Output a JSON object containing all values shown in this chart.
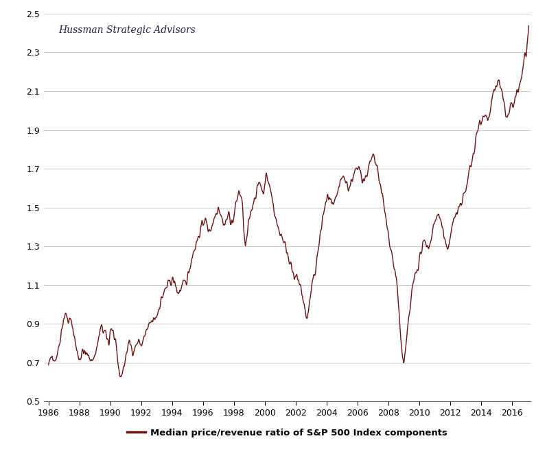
{
  "title_annotation": "Hussman Strategic Advisors",
  "legend_label": "Median price/revenue ratio of S&P 500 Index components",
  "line_color": "#6B1212",
  "line_width": 1.0,
  "background_color": "#ffffff",
  "grid_color": "#c8c8c8",
  "ylim": [
    0.5,
    2.5
  ],
  "yticks": [
    0.5,
    0.7,
    0.9,
    1.1,
    1.3,
    1.5,
    1.7,
    1.9,
    2.1,
    2.3,
    2.5
  ],
  "xlim": [
    1985.7,
    2017.2
  ],
  "xtick_positions": [
    1986,
    1988,
    1990,
    1992,
    1994,
    1996,
    1998,
    2000,
    2002,
    2004,
    2006,
    2008,
    2010,
    2012,
    2014,
    2016
  ],
  "xtick_labels": [
    "1986",
    "1988",
    "1990",
    "1992",
    "1994",
    "1996",
    "1998",
    "2000",
    "2002",
    "2004",
    "2006",
    "2008",
    "2010",
    "2012",
    "2014",
    "2016"
  ],
  "data": [
    [
      1986.0,
      0.68
    ],
    [
      1986.08,
      0.7
    ],
    [
      1986.17,
      0.72
    ],
    [
      1986.25,
      0.75
    ],
    [
      1986.33,
      0.73
    ],
    [
      1986.42,
      0.71
    ],
    [
      1986.5,
      0.73
    ],
    [
      1986.58,
      0.75
    ],
    [
      1986.67,
      0.78
    ],
    [
      1986.75,
      0.82
    ],
    [
      1986.83,
      0.86
    ],
    [
      1986.92,
      0.9
    ],
    [
      1987.0,
      0.93
    ],
    [
      1987.08,
      0.95
    ],
    [
      1987.17,
      0.94
    ],
    [
      1987.25,
      0.92
    ],
    [
      1987.33,
      0.91
    ],
    [
      1987.42,
      0.92
    ],
    [
      1987.5,
      0.9
    ],
    [
      1987.58,
      0.88
    ],
    [
      1987.67,
      0.84
    ],
    [
      1987.75,
      0.8
    ],
    [
      1987.83,
      0.76
    ],
    [
      1987.92,
      0.74
    ],
    [
      1988.0,
      0.72
    ],
    [
      1988.08,
      0.73
    ],
    [
      1988.17,
      0.75
    ],
    [
      1988.25,
      0.76
    ],
    [
      1988.33,
      0.75
    ],
    [
      1988.42,
      0.74
    ],
    [
      1988.5,
      0.74
    ],
    [
      1988.58,
      0.73
    ],
    [
      1988.67,
      0.73
    ],
    [
      1988.75,
      0.72
    ],
    [
      1988.83,
      0.71
    ],
    [
      1988.92,
      0.72
    ],
    [
      1989.0,
      0.74
    ],
    [
      1989.08,
      0.76
    ],
    [
      1989.17,
      0.79
    ],
    [
      1989.25,
      0.82
    ],
    [
      1989.33,
      0.86
    ],
    [
      1989.42,
      0.88
    ],
    [
      1989.5,
      0.87
    ],
    [
      1989.58,
      0.86
    ],
    [
      1989.67,
      0.85
    ],
    [
      1989.75,
      0.83
    ],
    [
      1989.83,
      0.82
    ],
    [
      1989.92,
      0.8
    ],
    [
      1990.0,
      0.87
    ],
    [
      1990.08,
      0.88
    ],
    [
      1990.17,
      0.86
    ],
    [
      1990.25,
      0.83
    ],
    [
      1990.33,
      0.79
    ],
    [
      1990.42,
      0.75
    ],
    [
      1990.5,
      0.7
    ],
    [
      1990.58,
      0.65
    ],
    [
      1990.67,
      0.63
    ],
    [
      1990.75,
      0.64
    ],
    [
      1990.83,
      0.66
    ],
    [
      1990.92,
      0.69
    ],
    [
      1991.0,
      0.73
    ],
    [
      1991.08,
      0.76
    ],
    [
      1991.17,
      0.79
    ],
    [
      1991.25,
      0.8
    ],
    [
      1991.33,
      0.79
    ],
    [
      1991.42,
      0.77
    ],
    [
      1991.5,
      0.76
    ],
    [
      1991.58,
      0.77
    ],
    [
      1991.67,
      0.79
    ],
    [
      1991.75,
      0.8
    ],
    [
      1991.83,
      0.81
    ],
    [
      1991.92,
      0.8
    ],
    [
      1992.0,
      0.79
    ],
    [
      1992.08,
      0.8
    ],
    [
      1992.17,
      0.82
    ],
    [
      1992.25,
      0.84
    ],
    [
      1992.33,
      0.86
    ],
    [
      1992.42,
      0.87
    ],
    [
      1992.5,
      0.88
    ],
    [
      1992.58,
      0.9
    ],
    [
      1992.67,
      0.91
    ],
    [
      1992.75,
      0.91
    ],
    [
      1992.83,
      0.92
    ],
    [
      1992.92,
      0.93
    ],
    [
      1993.0,
      0.94
    ],
    [
      1993.08,
      0.96
    ],
    [
      1993.17,
      0.99
    ],
    [
      1993.25,
      1.01
    ],
    [
      1993.33,
      1.03
    ],
    [
      1993.42,
      1.05
    ],
    [
      1993.5,
      1.06
    ],
    [
      1993.58,
      1.08
    ],
    [
      1993.67,
      1.09
    ],
    [
      1993.75,
      1.1
    ],
    [
      1993.83,
      1.11
    ],
    [
      1993.92,
      1.12
    ],
    [
      1994.0,
      1.13
    ],
    [
      1994.08,
      1.12
    ],
    [
      1994.17,
      1.11
    ],
    [
      1994.25,
      1.09
    ],
    [
      1994.33,
      1.07
    ],
    [
      1994.42,
      1.06
    ],
    [
      1994.5,
      1.07
    ],
    [
      1994.58,
      1.08
    ],
    [
      1994.67,
      1.09
    ],
    [
      1994.75,
      1.1
    ],
    [
      1994.83,
      1.11
    ],
    [
      1994.92,
      1.12
    ],
    [
      1995.0,
      1.14
    ],
    [
      1995.08,
      1.17
    ],
    [
      1995.17,
      1.2
    ],
    [
      1995.25,
      1.23
    ],
    [
      1995.33,
      1.26
    ],
    [
      1995.42,
      1.28
    ],
    [
      1995.5,
      1.3
    ],
    [
      1995.58,
      1.32
    ],
    [
      1995.67,
      1.34
    ],
    [
      1995.75,
      1.36
    ],
    [
      1995.83,
      1.38
    ],
    [
      1995.92,
      1.4
    ],
    [
      1996.0,
      1.42
    ],
    [
      1996.08,
      1.44
    ],
    [
      1996.17,
      1.43
    ],
    [
      1996.25,
      1.41
    ],
    [
      1996.33,
      1.39
    ],
    [
      1996.42,
      1.38
    ],
    [
      1996.5,
      1.39
    ],
    [
      1996.58,
      1.41
    ],
    [
      1996.67,
      1.43
    ],
    [
      1996.75,
      1.45
    ],
    [
      1996.83,
      1.47
    ],
    [
      1996.92,
      1.49
    ],
    [
      1997.0,
      1.51
    ],
    [
      1997.08,
      1.49
    ],
    [
      1997.17,
      1.46
    ],
    [
      1997.25,
      1.44
    ],
    [
      1997.33,
      1.42
    ],
    [
      1997.42,
      1.41
    ],
    [
      1997.5,
      1.43
    ],
    [
      1997.58,
      1.45
    ],
    [
      1997.67,
      1.46
    ],
    [
      1997.75,
      1.45
    ],
    [
      1997.83,
      1.43
    ],
    [
      1997.92,
      1.42
    ],
    [
      1998.0,
      1.45
    ],
    [
      1998.08,
      1.49
    ],
    [
      1998.17,
      1.53
    ],
    [
      1998.25,
      1.56
    ],
    [
      1998.33,
      1.58
    ],
    [
      1998.42,
      1.57
    ],
    [
      1998.5,
      1.54
    ],
    [
      1998.58,
      1.48
    ],
    [
      1998.67,
      1.35
    ],
    [
      1998.75,
      1.29
    ],
    [
      1998.83,
      1.33
    ],
    [
      1998.92,
      1.39
    ],
    [
      1999.0,
      1.44
    ],
    [
      1999.08,
      1.47
    ],
    [
      1999.17,
      1.5
    ],
    [
      1999.25,
      1.53
    ],
    [
      1999.33,
      1.55
    ],
    [
      1999.42,
      1.57
    ],
    [
      1999.5,
      1.59
    ],
    [
      1999.58,
      1.61
    ],
    [
      1999.67,
      1.63
    ],
    [
      1999.75,
      1.62
    ],
    [
      1999.83,
      1.59
    ],
    [
      1999.92,
      1.57
    ],
    [
      2000.0,
      1.64
    ],
    [
      2000.08,
      1.66
    ],
    [
      2000.17,
      1.65
    ],
    [
      2000.25,
      1.63
    ],
    [
      2000.33,
      1.6
    ],
    [
      2000.42,
      1.57
    ],
    [
      2000.5,
      1.54
    ],
    [
      2000.58,
      1.5
    ],
    [
      2000.67,
      1.46
    ],
    [
      2000.75,
      1.43
    ],
    [
      2000.83,
      1.4
    ],
    [
      2000.92,
      1.38
    ],
    [
      2001.0,
      1.37
    ],
    [
      2001.08,
      1.36
    ],
    [
      2001.17,
      1.34
    ],
    [
      2001.25,
      1.32
    ],
    [
      2001.33,
      1.3
    ],
    [
      2001.42,
      1.28
    ],
    [
      2001.5,
      1.26
    ],
    [
      2001.58,
      1.24
    ],
    [
      2001.67,
      1.21
    ],
    [
      2001.75,
      1.18
    ],
    [
      2001.83,
      1.15
    ],
    [
      2001.92,
      1.12
    ],
    [
      2002.0,
      1.13
    ],
    [
      2002.08,
      1.15
    ],
    [
      2002.17,
      1.13
    ],
    [
      2002.25,
      1.1
    ],
    [
      2002.33,
      1.08
    ],
    [
      2002.42,
      1.05
    ],
    [
      2002.5,
      1.02
    ],
    [
      2002.58,
      0.98
    ],
    [
      2002.67,
      0.94
    ],
    [
      2002.75,
      0.93
    ],
    [
      2002.83,
      0.97
    ],
    [
      2002.92,
      1.02
    ],
    [
      2003.0,
      1.06
    ],
    [
      2003.08,
      1.1
    ],
    [
      2003.17,
      1.14
    ],
    [
      2003.25,
      1.17
    ],
    [
      2003.33,
      1.21
    ],
    [
      2003.42,
      1.26
    ],
    [
      2003.5,
      1.3
    ],
    [
      2003.58,
      1.35
    ],
    [
      2003.67,
      1.4
    ],
    [
      2003.75,
      1.45
    ],
    [
      2003.83,
      1.48
    ],
    [
      2003.92,
      1.51
    ],
    [
      2004.0,
      1.53
    ],
    [
      2004.08,
      1.56
    ],
    [
      2004.17,
      1.55
    ],
    [
      2004.25,
      1.53
    ],
    [
      2004.33,
      1.51
    ],
    [
      2004.42,
      1.5
    ],
    [
      2004.5,
      1.51
    ],
    [
      2004.58,
      1.53
    ],
    [
      2004.67,
      1.56
    ],
    [
      2004.75,
      1.59
    ],
    [
      2004.83,
      1.61
    ],
    [
      2004.92,
      1.63
    ],
    [
      2005.0,
      1.64
    ],
    [
      2005.08,
      1.66
    ],
    [
      2005.17,
      1.65
    ],
    [
      2005.25,
      1.63
    ],
    [
      2005.33,
      1.62
    ],
    [
      2005.42,
      1.6
    ],
    [
      2005.5,
      1.61
    ],
    [
      2005.58,
      1.63
    ],
    [
      2005.67,
      1.65
    ],
    [
      2005.75,
      1.67
    ],
    [
      2005.83,
      1.68
    ],
    [
      2005.92,
      1.69
    ],
    [
      2006.0,
      1.68
    ],
    [
      2006.08,
      1.7
    ],
    [
      2006.17,
      1.7
    ],
    [
      2006.25,
      1.68
    ],
    [
      2006.33,
      1.65
    ],
    [
      2006.42,
      1.64
    ],
    [
      2006.5,
      1.65
    ],
    [
      2006.58,
      1.67
    ],
    [
      2006.67,
      1.69
    ],
    [
      2006.75,
      1.71
    ],
    [
      2006.83,
      1.73
    ],
    [
      2006.92,
      1.74
    ],
    [
      2007.0,
      1.76
    ],
    [
      2007.08,
      1.75
    ],
    [
      2007.17,
      1.73
    ],
    [
      2007.25,
      1.7
    ],
    [
      2007.33,
      1.67
    ],
    [
      2007.42,
      1.64
    ],
    [
      2007.5,
      1.61
    ],
    [
      2007.58,
      1.57
    ],
    [
      2007.67,
      1.53
    ],
    [
      2007.75,
      1.48
    ],
    [
      2007.83,
      1.44
    ],
    [
      2007.92,
      1.4
    ],
    [
      2008.0,
      1.36
    ],
    [
      2008.08,
      1.32
    ],
    [
      2008.17,
      1.29
    ],
    [
      2008.25,
      1.25
    ],
    [
      2008.33,
      1.21
    ],
    [
      2008.42,
      1.17
    ],
    [
      2008.5,
      1.13
    ],
    [
      2008.58,
      1.07
    ],
    [
      2008.67,
      0.98
    ],
    [
      2008.75,
      0.88
    ],
    [
      2008.83,
      0.8
    ],
    [
      2008.92,
      0.72
    ],
    [
      2009.0,
      0.7
    ],
    [
      2009.08,
      0.74
    ],
    [
      2009.17,
      0.8
    ],
    [
      2009.25,
      0.87
    ],
    [
      2009.33,
      0.93
    ],
    [
      2009.42,
      0.99
    ],
    [
      2009.5,
      1.05
    ],
    [
      2009.58,
      1.09
    ],
    [
      2009.67,
      1.13
    ],
    [
      2009.75,
      1.16
    ],
    [
      2009.83,
      1.18
    ],
    [
      2009.92,
      1.2
    ],
    [
      2010.0,
      1.23
    ],
    [
      2010.08,
      1.26
    ],
    [
      2010.17,
      1.28
    ],
    [
      2010.25,
      1.3
    ],
    [
      2010.33,
      1.32
    ],
    [
      2010.42,
      1.33
    ],
    [
      2010.5,
      1.31
    ],
    [
      2010.58,
      1.29
    ],
    [
      2010.67,
      1.31
    ],
    [
      2010.75,
      1.34
    ],
    [
      2010.83,
      1.37
    ],
    [
      2010.92,
      1.4
    ],
    [
      2011.0,
      1.42
    ],
    [
      2011.08,
      1.45
    ],
    [
      2011.17,
      1.47
    ],
    [
      2011.25,
      1.46
    ],
    [
      2011.33,
      1.44
    ],
    [
      2011.42,
      1.42
    ],
    [
      2011.5,
      1.39
    ],
    [
      2011.58,
      1.35
    ],
    [
      2011.67,
      1.31
    ],
    [
      2011.75,
      1.29
    ],
    [
      2011.83,
      1.3
    ],
    [
      2011.92,
      1.32
    ],
    [
      2012.0,
      1.35
    ],
    [
      2012.08,
      1.38
    ],
    [
      2012.17,
      1.42
    ],
    [
      2012.25,
      1.45
    ],
    [
      2012.33,
      1.47
    ],
    [
      2012.42,
      1.46
    ],
    [
      2012.5,
      1.47
    ],
    [
      2012.58,
      1.5
    ],
    [
      2012.67,
      1.52
    ],
    [
      2012.75,
      1.54
    ],
    [
      2012.83,
      1.55
    ],
    [
      2012.92,
      1.57
    ],
    [
      2013.0,
      1.58
    ],
    [
      2013.08,
      1.62
    ],
    [
      2013.17,
      1.66
    ],
    [
      2013.25,
      1.69
    ],
    [
      2013.33,
      1.72
    ],
    [
      2013.42,
      1.75
    ],
    [
      2013.5,
      1.78
    ],
    [
      2013.58,
      1.81
    ],
    [
      2013.67,
      1.85
    ],
    [
      2013.75,
      1.89
    ],
    [
      2013.83,
      1.92
    ],
    [
      2013.92,
      1.94
    ],
    [
      2014.0,
      1.95
    ],
    [
      2014.08,
      1.97
    ],
    [
      2014.17,
      1.99
    ],
    [
      2014.25,
      1.98
    ],
    [
      2014.33,
      1.97
    ],
    [
      2014.42,
      1.96
    ],
    [
      2014.5,
      1.97
    ],
    [
      2014.58,
      1.99
    ],
    [
      2014.67,
      2.03
    ],
    [
      2014.75,
      2.07
    ],
    [
      2014.83,
      2.09
    ],
    [
      2014.92,
      2.11
    ],
    [
      2015.0,
      2.13
    ],
    [
      2015.08,
      2.16
    ],
    [
      2015.17,
      2.14
    ],
    [
      2015.25,
      2.12
    ],
    [
      2015.33,
      2.09
    ],
    [
      2015.42,
      2.05
    ],
    [
      2015.5,
      2.02
    ],
    [
      2015.58,
      1.99
    ],
    [
      2015.67,
      1.97
    ],
    [
      2015.75,
      1.97
    ],
    [
      2015.83,
      1.99
    ],
    [
      2015.92,
      2.02
    ],
    [
      2016.0,
      2.04
    ],
    [
      2016.08,
      2.01
    ],
    [
      2016.17,
      2.03
    ],
    [
      2016.25,
      2.07
    ],
    [
      2016.33,
      2.1
    ],
    [
      2016.42,
      2.11
    ],
    [
      2016.5,
      2.13
    ],
    [
      2016.58,
      2.16
    ],
    [
      2016.67,
      2.2
    ],
    [
      2016.75,
      2.25
    ],
    [
      2016.83,
      2.29
    ],
    [
      2016.92,
      2.3
    ],
    [
      2017.0,
      2.35
    ],
    [
      2017.08,
      2.4
    ]
  ]
}
